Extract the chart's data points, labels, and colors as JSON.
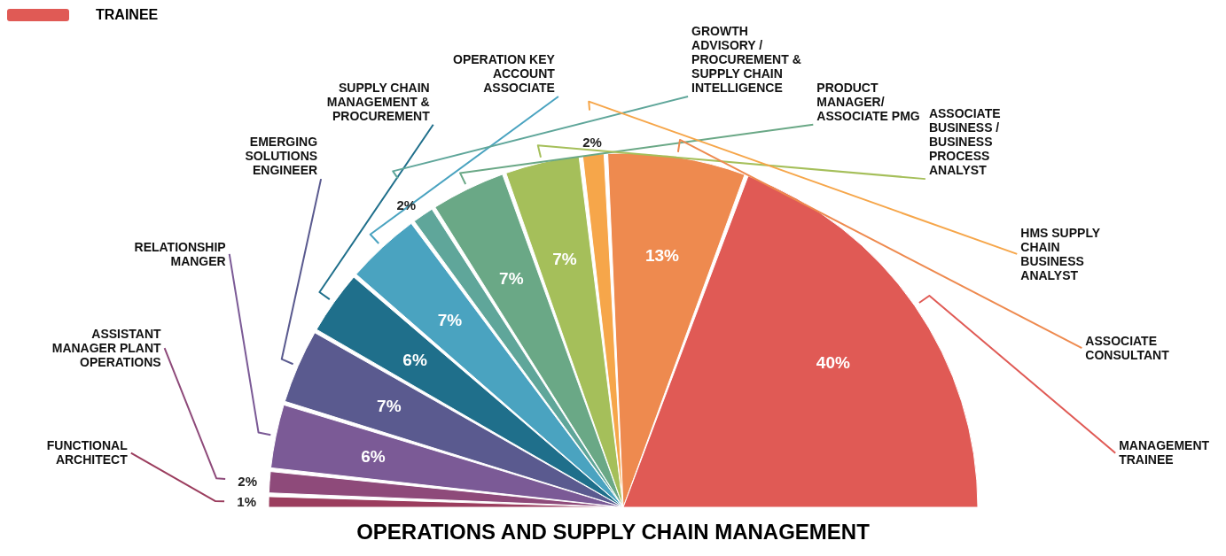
{
  "chart_data": {
    "type": "pie",
    "title": "OPERATIONS AND  SUPPLY CHAIN  MANAGEMENT",
    "annotations": [
      "TRAINEE"
    ],
    "categories": [
      "FUNCTIONAL ARCHITECT",
      "ASSISTANT MANAGER PLANT OPERATIONS",
      "RELATIONSHIP MANGER",
      "EMERGING SOLUTIONS ENGINEER",
      "SUPPLY CHAIN MANAGEMENT & PROCUREMENT",
      "OPERATION KEY ACCOUNT ASSOCIATE",
      "GROWTH ADVISORY / PROCUREMENT & SUPPLY CHAIN INTELLIGENCE",
      "PRODUCT MANAGER/ ASSOCIATE PMG",
      "ASSOCIATE BUSINESS / BUSINESS PROCESS ANALYST",
      "HMS SUPPLY CHAIN BUSINESS ANALYST",
      "ASSOCIATE CONSULTANT",
      "MANAGEMENT TRAINEE"
    ],
    "values": [
      1,
      2,
      6,
      7,
      6,
      7,
      2,
      7,
      7,
      2,
      13,
      40
    ],
    "value_labels": [
      "1%",
      "2%",
      "6%",
      "7%",
      "6%",
      "7%",
      "2%",
      "7%",
      "7%",
      "2%",
      "13%",
      "40%"
    ],
    "colors": [
      "#9b3d5e",
      "#8e4a7a",
      "#7b5a96",
      "#5a5a8f",
      "#1f6f8b",
      "#4aa3c0",
      "#5fa69a",
      "#6aa886",
      "#a5bf5a",
      "#f6a64a",
      "#ee8a4f",
      "#e05a55"
    ]
  }
}
